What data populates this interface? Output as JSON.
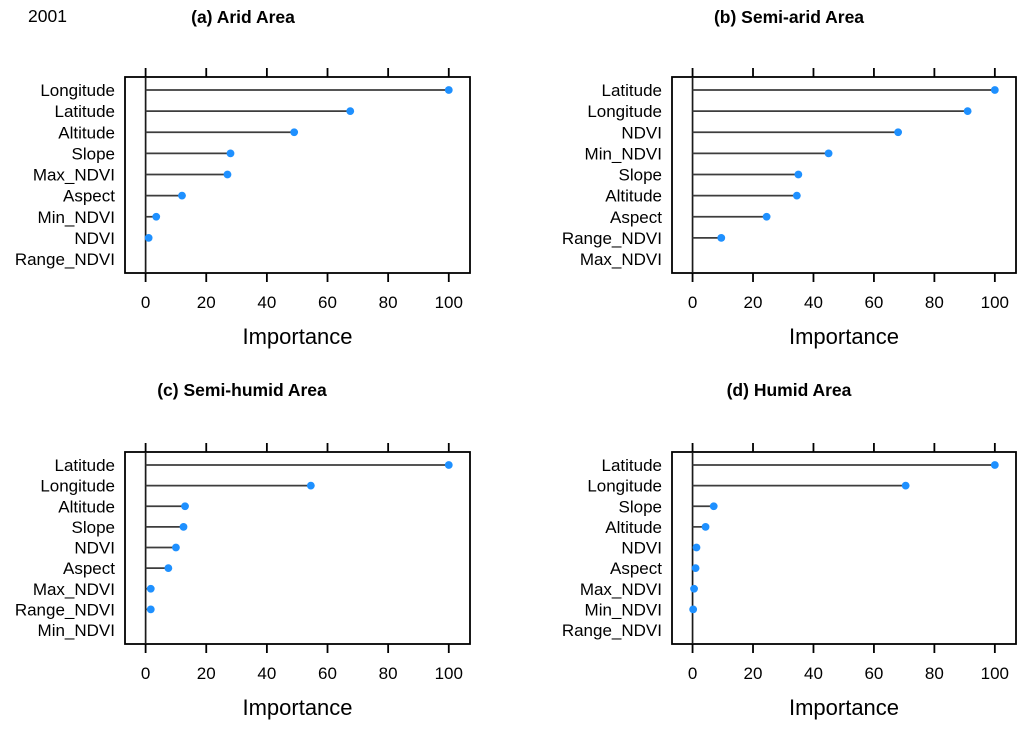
{
  "page": {
    "year_label": "2001"
  },
  "style_colors": {
    "dot_color": "#1E90FF",
    "stem_color": "#3d3d3d",
    "axis_color": "#000000",
    "background": "#ffffff"
  },
  "chart_data": [
    {
      "id": "a",
      "type": "bar",
      "variant": "lollipop-dotchart",
      "orientation": "horizontal",
      "title": "(a) Arid Area",
      "xlabel": "Importance",
      "ylabel": "",
      "xlim": [
        -6.8,
        107
      ],
      "xticks": [
        0,
        20,
        40,
        60,
        80,
        100
      ],
      "grid": false,
      "legend": "none",
      "categories": [
        "Longitude",
        "Latitude",
        "Altitude",
        "Slope",
        "Max_NDVI",
        "Aspect",
        "Min_NDVI",
        "NDVI",
        "Range_NDVI"
      ],
      "values": [
        100,
        67.5,
        49,
        28,
        27,
        12,
        3.5,
        1,
        null
      ]
    },
    {
      "id": "b",
      "type": "bar",
      "variant": "lollipop-dotchart",
      "orientation": "horizontal",
      "title": "(b) Semi-arid Area",
      "xlabel": "Importance",
      "ylabel": "",
      "xlim": [
        -6.8,
        107
      ],
      "xticks": [
        0,
        20,
        40,
        60,
        80,
        100
      ],
      "grid": false,
      "legend": "none",
      "categories": [
        "Latitude",
        "Longitude",
        "NDVI",
        "Min_NDVI",
        "Slope",
        "Altitude",
        "Aspect",
        "Range_NDVI",
        "Max_NDVI"
      ],
      "values": [
        100,
        91,
        68,
        45,
        35,
        34.5,
        24.5,
        9.5,
        null
      ]
    },
    {
      "id": "c",
      "type": "bar",
      "variant": "lollipop-dotchart",
      "orientation": "horizontal",
      "title": "(c) Semi-humid Area",
      "xlabel": "Importance",
      "ylabel": "",
      "xlim": [
        -6.8,
        107
      ],
      "xticks": [
        0,
        20,
        40,
        60,
        80,
        100
      ],
      "grid": false,
      "legend": "none",
      "categories": [
        "Latitude",
        "Longitude",
        "Altitude",
        "Slope",
        "NDVI",
        "Aspect",
        "Max_NDVI",
        "Range_NDVI",
        "Min_NDVI"
      ],
      "values": [
        100,
        54.5,
        13,
        12.5,
        10,
        7.5,
        1.7,
        1.7,
        null
      ]
    },
    {
      "id": "d",
      "type": "bar",
      "variant": "lollipop-dotchart",
      "orientation": "horizontal",
      "title": "(d) Humid Area",
      "xlabel": "Importance",
      "ylabel": "",
      "xlim": [
        -6.8,
        107
      ],
      "xticks": [
        0,
        20,
        40,
        60,
        80,
        100
      ],
      "grid": false,
      "legend": "none",
      "categories": [
        "Latitude",
        "Longitude",
        "Slope",
        "Altitude",
        "NDVI",
        "Aspect",
        "Max_NDVI",
        "Min_NDVI",
        "Range_NDVI"
      ],
      "values": [
        100,
        70.5,
        7,
        4.3,
        1.3,
        1,
        0.5,
        0.2,
        null
      ]
    }
  ]
}
